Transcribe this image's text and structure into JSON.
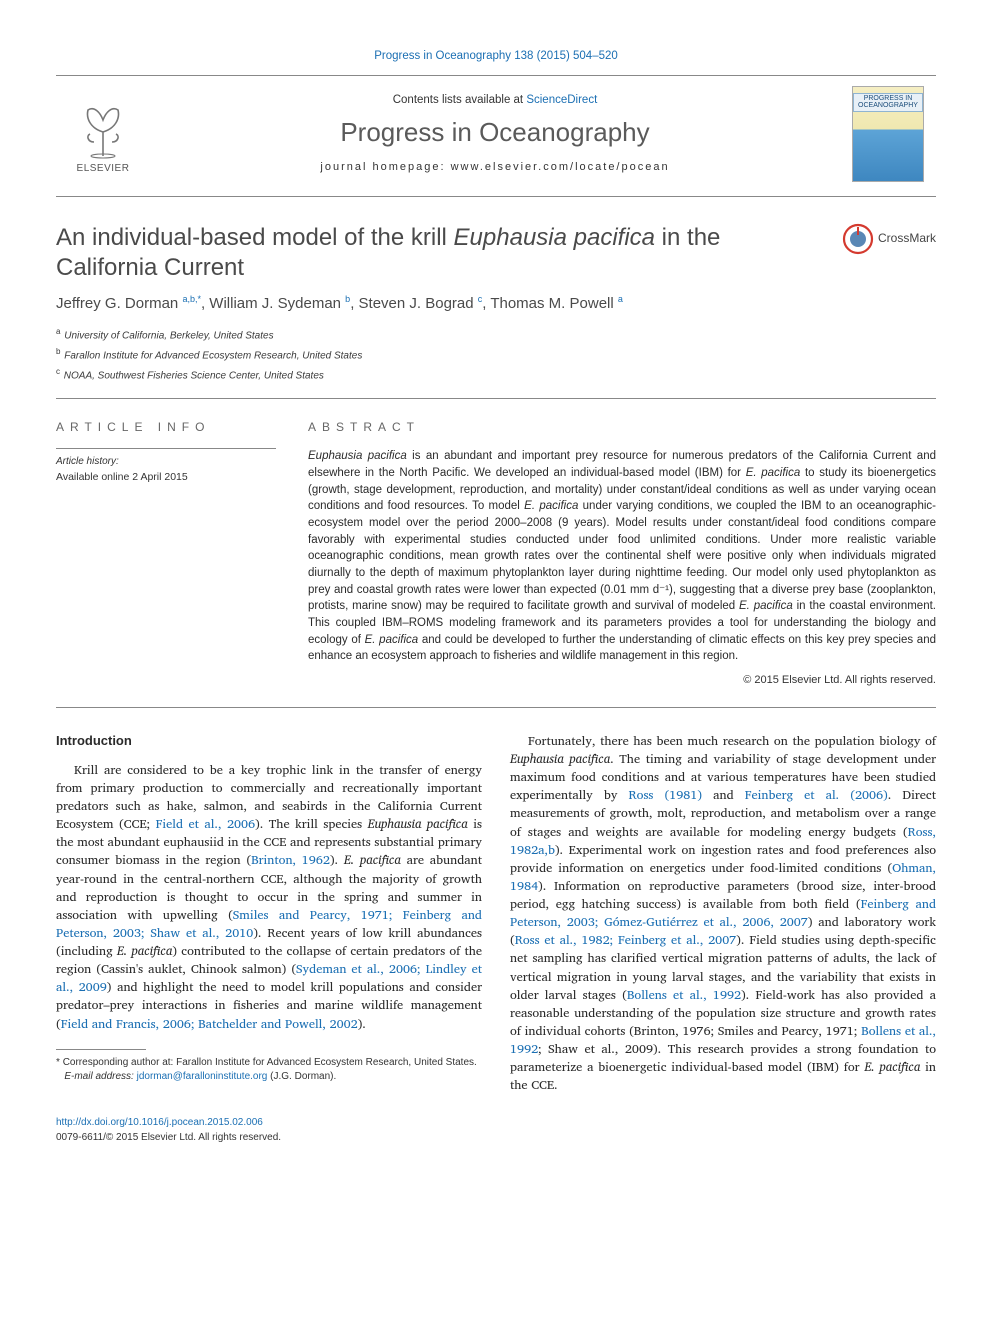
{
  "citation_line": "Progress in Oceanography 138 (2015) 504–520",
  "header": {
    "contents_prefix": "Contents lists available at ",
    "contents_link": "ScienceDirect",
    "journal_name": "Progress in Oceanography",
    "homepage_prefix": "journal homepage: ",
    "homepage": "www.elsevier.com/locate/pocean",
    "publisher_name": "ELSEVIER",
    "cover_label": "PROGRESS IN OCEANOGRAPHY"
  },
  "colors": {
    "link": "#1b6fb3",
    "text": "#2a2a2a",
    "heading_gray": "#4a4a4a",
    "rule": "#888888"
  },
  "article": {
    "title_plain": "An individual-based model of the krill ",
    "title_species": "Euphausia pacifica",
    "title_suffix": " in the California Current",
    "crossmark_label": "CrossMark",
    "authors_html": "Jeffrey G. Dorman|a,b,*|, William J. Sydeman|b|, Steven J. Bograd|c|, Thomas M. Powell|a|",
    "authors": [
      {
        "name": "Jeffrey G. Dorman",
        "marks": "a,b,*"
      },
      {
        "name": "William J. Sydeman",
        "marks": "b"
      },
      {
        "name": "Steven J. Bograd",
        "marks": "c"
      },
      {
        "name": "Thomas M. Powell",
        "marks": "a"
      }
    ],
    "affiliations": [
      {
        "mark": "a",
        "text": "University of California, Berkeley, United States"
      },
      {
        "mark": "b",
        "text": "Farallon Institute for Advanced Ecosystem Research, United States"
      },
      {
        "mark": "c",
        "text": "NOAA, Southwest Fisheries Science Center, United States"
      }
    ]
  },
  "info": {
    "section_label": "ARTICLE INFO",
    "history_label": "Article history:",
    "history_value": "Available online 2 April 2015"
  },
  "abstract": {
    "label": "ABSTRACT",
    "text": "Euphausia pacifica is an abundant and important prey resource for numerous predators of the California Current and elsewhere in the North Pacific. We developed an individual-based model (IBM) for E. pacifica to study its bioenergetics (growth, stage development, reproduction, and mortality) under constant/ideal conditions as well as under varying ocean conditions and food resources. To model E. pacifica under varying conditions, we coupled the IBM to an oceanographic-ecosystem model over the period 2000–2008 (9 years). Model results under constant/ideal food conditions compare favorably with experimental studies conducted under food unlimited conditions. Under more realistic variable oceanographic conditions, mean growth rates over the continental shelf were positive only when individuals migrated diurnally to the depth of maximum phytoplankton layer during nighttime feeding. Our model only used phytoplankton as prey and coastal growth rates were lower than expected (0.01 mm d⁻¹), suggesting that a diverse prey base (zooplankton, protists, marine snow) may be required to facilitate growth and survival of modeled E. pacifica in the coastal environment. This coupled IBM–ROMS modeling framework and its parameters provides a tool for understanding the biology and ecology of E. pacifica and could be developed to further the understanding of climatic effects on this key prey species and enhance an ecosystem approach to fisheries and wildlife management in this region.",
    "copyright": "© 2015 Elsevier Ltd. All rights reserved."
  },
  "body": {
    "intro_heading": "Introduction",
    "para1": "Krill are considered to be a key trophic link in the transfer of energy from primary production to commercially and recreationally important predators such as hake, salmon, and seabirds in the California Current Ecosystem (CCE; Field et al., 2006). The krill species Euphausia pacifica is the most abundant euphausiid in the CCE and represents substantial primary consumer biomass in the region (Brinton, 1962). E. pacifica are abundant year-round in the central-northern CCE, although the majority of growth and reproduction is thought to occur in the spring and summer in association with upwelling (Smiles and Pearcy, 1971; Feinberg and Peterson, 2003; Shaw et al., 2010). Recent years of low krill abundances (including E. pacifica) contributed to the collapse of certain predators of the region (Cassin's auklet, Chinook salmon) (Sydeman et al., 2006; Lindley et al., 2009) and highlight the need to model krill populations and consider predator–prey interactions in fisheries and marine wildlife management (Field and Francis, 2006; Batchelder and Powell, 2002).",
    "para2": "Fortunately, there has been much research on the population biology of Euphausia pacifica. The timing and variability of stage development under maximum food conditions and at various temperatures have been studied experimentally by Ross (1981) and Feinberg et al. (2006). Direct measurements of growth, molt, reproduction, and metabolism over a range of stages and weights are available for modeling energy budgets (Ross, 1982a,b). Experimental work on ingestion rates and food preferences also provide information on energetics under food-limited conditions (Ohman, 1984). Information on reproductive parameters (brood size, inter-brood period, egg hatching success) is available from both field (Feinberg and Peterson, 2003; Gómez-Gutiérrez et al., 2006, 2007) and laboratory work (Ross et al., 1982; Feinberg et al., 2007). Field studies using depth-specific net sampling has clarified vertical migration patterns of adults, the lack of vertical migration in young larval stages, and the variability that exists in older larval stages (Bollens et al., 1992). Field-work has also provided a reasonable understanding of the population size structure and growth rates of individual cohorts (Brinton, 1976; Smiles and Pearcy, 1971; Bollens et al., 1992; Shaw et al., 2009). This research provides a strong foundation to parameterize a bioenergetic individual-based model (IBM) for E. pacifica in the CCE."
  },
  "footnotes": {
    "corr": "Corresponding author at: Farallon Institute for Advanced Ecosystem Research, United States.",
    "email_label": "E-mail address:",
    "email": "jdorman@faralloninstitute.org",
    "email_owner": "(J.G. Dorman)."
  },
  "footer": {
    "doi": "http://dx.doi.org/10.1016/j.pocean.2015.02.006",
    "issn_line": "0079-6611/© 2015 Elsevier Ltd. All rights reserved."
  }
}
